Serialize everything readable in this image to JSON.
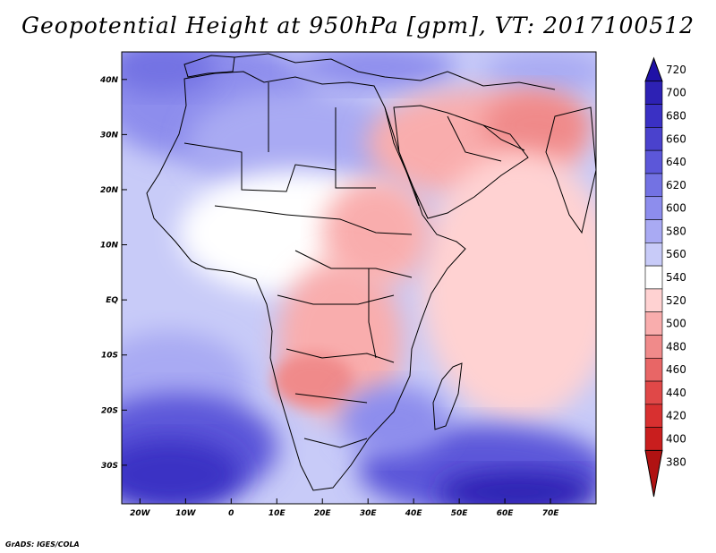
{
  "title": "Geopotential Height at 950hPa [gpm], VT: 2017100512",
  "credit": "GrADS: IGES/COLA",
  "map": {
    "variable": "Geopotential Height",
    "level": "950hPa",
    "units": "gpm",
    "valid_time": "2017100512",
    "lon_range": [
      -24,
      80
    ],
    "lat_range": [
      -37,
      45
    ],
    "lon_ticks": [
      {
        "value": -20,
        "label": "20W"
      },
      {
        "value": -10,
        "label": "10W"
      },
      {
        "value": 0,
        "label": "0"
      },
      {
        "value": 10,
        "label": "10E"
      },
      {
        "value": 20,
        "label": "20E"
      },
      {
        "value": 30,
        "label": "30E"
      },
      {
        "value": 40,
        "label": "40E"
      },
      {
        "value": 50,
        "label": "50E"
      },
      {
        "value": 60,
        "label": "60E"
      },
      {
        "value": 70,
        "label": "70E"
      }
    ],
    "lat_ticks": [
      {
        "value": 40,
        "label": "40N"
      },
      {
        "value": 30,
        "label": "30N"
      },
      {
        "value": 20,
        "label": "20N"
      },
      {
        "value": 10,
        "label": "10N"
      },
      {
        "value": 0,
        "label": "EQ"
      },
      {
        "value": -10,
        "label": "10S"
      },
      {
        "value": -20,
        "label": "20S"
      },
      {
        "value": -30,
        "label": "30S"
      }
    ]
  },
  "colorbar": {
    "levels": [
      720,
      700,
      680,
      660,
      640,
      620,
      600,
      580,
      560,
      540,
      520,
      500,
      480,
      460,
      440,
      420,
      400,
      380
    ],
    "colors": [
      "#1f11a6",
      "#2d21b4",
      "#3a30c4",
      "#4a42cd",
      "#5c57d9",
      "#7372e3",
      "#8d8ded",
      "#a9aaf3",
      "#c8cbf8",
      "#ffffff",
      "#ffd2d2",
      "#f9adad",
      "#f08a8a",
      "#e86666",
      "#e04848",
      "#d83030",
      "#c91e1e",
      "#b01212"
    ]
  },
  "features": {
    "ocean_regions": [
      {
        "name": "north-atlantic-west",
        "color": "#8d8ded"
      },
      {
        "name": "south-atlantic",
        "color": "#a9aaf3"
      },
      {
        "name": "southern-ocean-west-low",
        "color": "#3a30c4"
      },
      {
        "name": "southern-ocean-east-low",
        "color": "#2d21b4"
      },
      {
        "name": "indian-ocean",
        "color": "#ffd2d2"
      },
      {
        "name": "sahara",
        "color": "#c8cbf8"
      },
      {
        "name": "arabia-high",
        "color": "#f9adad"
      },
      {
        "name": "southern-africa-high",
        "color": "#f08a8a"
      }
    ]
  }
}
